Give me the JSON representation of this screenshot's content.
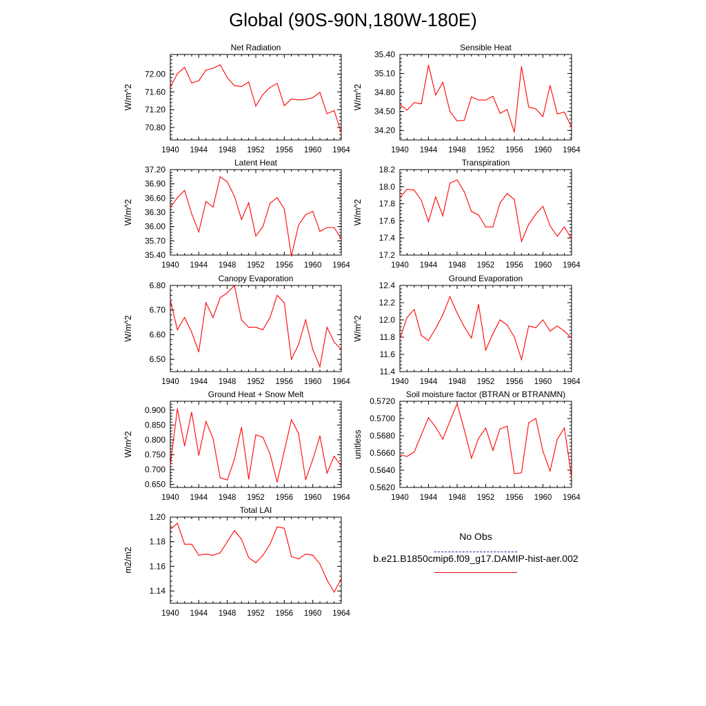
{
  "title": "Global (90S-90N,180W-180E)",
  "legend": {
    "entries": [
      {
        "label": "No Obs",
        "color": "#1a1aa0",
        "style": "dashed"
      },
      {
        "label": "b.e21.B1850cmip6.f09_g17.DAMIP-hist-aer.002",
        "color": "#e00000",
        "style": "solid"
      }
    ]
  },
  "colors": {
    "series": "#ff0000"
  },
  "chart_data": [
    {
      "type": "line",
      "title": "Net Radiation",
      "ylabel": "W/m^2",
      "xlim": [
        1940,
        1964
      ],
      "ylim": [
        70.52,
        72.44
      ],
      "xticks": [
        1940,
        1944,
        1948,
        1952,
        1956,
        1960,
        1964
      ],
      "yticks": [
        70.8,
        71.2,
        71.6,
        72.0
      ],
      "ytick_labels": [
        "70.80",
        "71.20",
        "71.60",
        "72.00"
      ],
      "x": [
        1940,
        1941,
        1942,
        1943,
        1944,
        1945,
        1946,
        1947,
        1948,
        1949,
        1950,
        1951,
        1952,
        1953,
        1954,
        1955,
        1956,
        1957,
        1958,
        1959,
        1960,
        1961,
        1962,
        1963,
        1964
      ],
      "series": [
        {
          "values": [
            71.7,
            72.01,
            72.15,
            71.8,
            71.85,
            72.09,
            72.13,
            72.21,
            71.92,
            71.74,
            71.72,
            71.82,
            71.28,
            71.54,
            71.7,
            71.79,
            71.29,
            71.44,
            71.42,
            71.43,
            71.47,
            71.59,
            71.11,
            71.18,
            70.68
          ]
        }
      ]
    },
    {
      "type": "line",
      "title": "Sensible Heat",
      "ylabel": "W/m^2",
      "xlim": [
        1940,
        1964
      ],
      "ylim": [
        34.05,
        35.4
      ],
      "xticks": [
        1940,
        1944,
        1948,
        1952,
        1956,
        1960,
        1964
      ],
      "yticks": [
        34.2,
        34.5,
        34.8,
        35.1,
        35.4
      ],
      "ytick_labels": [
        "34.20",
        "34.50",
        "34.80",
        "35.10",
        "35.40"
      ],
      "x": [
        1940,
        1941,
        1942,
        1943,
        1944,
        1945,
        1946,
        1947,
        1948,
        1949,
        1950,
        1951,
        1952,
        1953,
        1954,
        1955,
        1956,
        1957,
        1958,
        1959,
        1960,
        1961,
        1962,
        1963,
        1964
      ],
      "series": [
        {
          "values": [
            34.61,
            34.52,
            34.64,
            34.62,
            35.23,
            34.76,
            34.96,
            34.5,
            34.35,
            34.36,
            34.73,
            34.68,
            34.68,
            34.74,
            34.47,
            34.53,
            34.17,
            35.21,
            34.57,
            34.54,
            34.42,
            34.91,
            34.46,
            34.49,
            34.25
          ]
        }
      ]
    },
    {
      "type": "line",
      "title": "Latent Heat",
      "ylabel": "W/m^2",
      "xlim": [
        1940,
        1964
      ],
      "ylim": [
        35.4,
        37.2
      ],
      "xticks": [
        1940,
        1944,
        1948,
        1952,
        1956,
        1960,
        1964
      ],
      "yticks": [
        35.4,
        35.7,
        36.0,
        36.3,
        36.6,
        36.9,
        37.2
      ],
      "ytick_labels": [
        "35.40",
        "35.70",
        "36.00",
        "36.30",
        "36.60",
        "36.90",
        "37.20"
      ],
      "x": [
        1940,
        1941,
        1942,
        1943,
        1944,
        1945,
        1946,
        1947,
        1948,
        1949,
        1950,
        1951,
        1952,
        1953,
        1954,
        1955,
        1956,
        1957,
        1958,
        1959,
        1960,
        1961,
        1962,
        1963,
        1964
      ],
      "series": [
        {
          "values": [
            36.4,
            36.61,
            36.76,
            36.27,
            35.89,
            36.53,
            36.41,
            37.05,
            36.94,
            36.64,
            36.15,
            36.5,
            35.8,
            36.0,
            36.49,
            36.61,
            36.37,
            35.38,
            36.03,
            36.25,
            36.32,
            35.9,
            35.98,
            35.98,
            35.74
          ]
        }
      ]
    },
    {
      "type": "line",
      "title": "Transpiration",
      "ylabel": "W/m^2",
      "xlim": [
        1940,
        1964
      ],
      "ylim": [
        17.2,
        18.2
      ],
      "xticks": [
        1940,
        1944,
        1948,
        1952,
        1956,
        1960,
        1964
      ],
      "yticks": [
        17.2,
        17.4,
        17.6,
        17.8,
        18.0,
        18.2
      ],
      "ytick_labels": [
        "17.2",
        "17.4",
        "17.6",
        "17.8",
        "18.0",
        "18.2"
      ],
      "x": [
        1940,
        1941,
        1942,
        1943,
        1944,
        1945,
        1946,
        1947,
        1948,
        1949,
        1950,
        1951,
        1952,
        1953,
        1954,
        1955,
        1956,
        1957,
        1958,
        1959,
        1960,
        1961,
        1962,
        1963,
        1964
      ],
      "series": [
        {
          "values": [
            17.87,
            17.97,
            17.96,
            17.84,
            17.59,
            17.88,
            17.66,
            18.04,
            18.08,
            17.94,
            17.71,
            17.67,
            17.53,
            17.53,
            17.81,
            17.92,
            17.85,
            17.36,
            17.56,
            17.68,
            17.77,
            17.54,
            17.42,
            17.53,
            17.39
          ]
        }
      ]
    },
    {
      "type": "line",
      "title": "Canopy Evaporation",
      "ylabel": "W/m^2",
      "xlim": [
        1940,
        1964
      ],
      "ylim": [
        6.45,
        6.8
      ],
      "xticks": [
        1940,
        1944,
        1948,
        1952,
        1956,
        1960,
        1964
      ],
      "yticks": [
        6.5,
        6.6,
        6.7,
        6.8
      ],
      "ytick_labels": [
        "6.50",
        "6.60",
        "6.70",
        "6.80"
      ],
      "x": [
        1940,
        1941,
        1942,
        1943,
        1944,
        1945,
        1946,
        1947,
        1948,
        1949,
        1950,
        1951,
        1952,
        1953,
        1954,
        1955,
        1956,
        1957,
        1958,
        1959,
        1960,
        1961,
        1962,
        1963,
        1964
      ],
      "series": [
        {
          "values": [
            6.74,
            6.62,
            6.67,
            6.61,
            6.53,
            6.73,
            6.67,
            6.75,
            6.77,
            6.8,
            6.66,
            6.63,
            6.63,
            6.62,
            6.67,
            6.76,
            6.73,
            6.5,
            6.56,
            6.66,
            6.54,
            6.47,
            6.63,
            6.57,
            6.54
          ]
        }
      ]
    },
    {
      "type": "line",
      "title": "Ground Evaporation",
      "ylabel": "W/m^2",
      "xlim": [
        1940,
        1964
      ],
      "ylim": [
        11.4,
        12.4
      ],
      "xticks": [
        1940,
        1944,
        1948,
        1952,
        1956,
        1960,
        1964
      ],
      "yticks": [
        11.4,
        11.6,
        11.8,
        12.0,
        12.2,
        12.4
      ],
      "ytick_labels": [
        "11.4",
        "11.6",
        "11.8",
        "12.0",
        "12.2",
        "12.4"
      ],
      "x": [
        1940,
        1941,
        1942,
        1943,
        1944,
        1945,
        1946,
        1947,
        1948,
        1949,
        1950,
        1951,
        1952,
        1953,
        1954,
        1955,
        1956,
        1957,
        1958,
        1959,
        1960,
        1961,
        1962,
        1963,
        1964
      ],
      "series": [
        {
          "values": [
            11.78,
            12.03,
            12.12,
            11.82,
            11.76,
            11.9,
            12.06,
            12.27,
            12.08,
            11.92,
            11.79,
            12.18,
            11.65,
            11.84,
            12.0,
            11.94,
            11.8,
            11.54,
            11.93,
            11.91,
            12.0,
            11.87,
            11.93,
            11.87,
            11.79
          ]
        }
      ]
    },
    {
      "type": "line",
      "title": "Ground Heat + Snow Melt",
      "ylabel": "W/m^2",
      "xlim": [
        1940,
        1964
      ],
      "ylim": [
        0.64,
        0.93
      ],
      "xticks": [
        1940,
        1944,
        1948,
        1952,
        1956,
        1960,
        1964
      ],
      "yticks": [
        0.65,
        0.7,
        0.75,
        0.8,
        0.85,
        0.9
      ],
      "ytick_labels": [
        "0.650",
        "0.700",
        "0.750",
        "0.800",
        "0.850",
        "0.900"
      ],
      "x": [
        1940,
        1941,
        1942,
        1943,
        1944,
        1945,
        1946,
        1947,
        1948,
        1949,
        1950,
        1951,
        1952,
        1953,
        1954,
        1955,
        1956,
        1957,
        1958,
        1959,
        1960,
        1961,
        1962,
        1963,
        1964
      ],
      "series": [
        {
          "values": [
            0.715,
            0.905,
            0.78,
            0.893,
            0.748,
            0.862,
            0.805,
            0.673,
            0.665,
            0.735,
            0.842,
            0.668,
            0.817,
            0.809,
            0.752,
            0.658,
            0.762,
            0.868,
            0.822,
            0.666,
            0.734,
            0.813,
            0.688,
            0.745,
            0.712
          ]
        }
      ]
    },
    {
      "type": "line",
      "title": "Soil moisture factor (BTRAN or BTRANMN)",
      "ylabel": "unitless",
      "xlim": [
        1940,
        1964
      ],
      "ylim": [
        0.562,
        0.572
      ],
      "xticks": [
        1940,
        1944,
        1948,
        1952,
        1956,
        1960,
        1964
      ],
      "yticks": [
        0.562,
        0.564,
        0.566,
        0.568,
        0.57,
        0.572
      ],
      "ytick_labels": [
        "0.5620",
        "0.5640",
        "0.5660",
        "0.5680",
        "0.5700",
        "0.5720"
      ],
      "x": [
        1940,
        1941,
        1942,
        1943,
        1944,
        1945,
        1946,
        1947,
        1948,
        1949,
        1950,
        1951,
        1952,
        1953,
        1954,
        1955,
        1956,
        1957,
        1958,
        1959,
        1960,
        1961,
        1962,
        1963,
        1964
      ],
      "series": [
        {
          "values": [
            0.5658,
            0.5656,
            0.5661,
            0.5681,
            0.5701,
            0.569,
            0.5676,
            0.5697,
            0.5717,
            0.5687,
            0.5654,
            0.5677,
            0.5689,
            0.5663,
            0.5688,
            0.5691,
            0.5636,
            0.5637,
            0.5695,
            0.57,
            0.5662,
            0.5639,
            0.5676,
            0.5689,
            0.5632
          ]
        }
      ]
    },
    {
      "type": "line",
      "title": "Total LAI",
      "ylabel": "m2/m2",
      "xlim": [
        1940,
        1964
      ],
      "ylim": [
        1.13,
        1.2
      ],
      "xticks": [
        1940,
        1944,
        1948,
        1952,
        1956,
        1960,
        1964
      ],
      "yticks": [
        1.14,
        1.16,
        1.18,
        1.2
      ],
      "ytick_labels": [
        "1.14",
        "1.16",
        "1.18",
        "1.20"
      ],
      "x": [
        1940,
        1941,
        1942,
        1943,
        1944,
        1945,
        1946,
        1947,
        1948,
        1949,
        1950,
        1951,
        1952,
        1953,
        1954,
        1955,
        1956,
        1957,
        1958,
        1959,
        1960,
        1961,
        1962,
        1963,
        1964
      ],
      "series": [
        {
          "values": [
            1.19,
            1.195,
            1.178,
            1.178,
            1.169,
            1.17,
            1.169,
            1.171,
            1.18,
            1.189,
            1.182,
            1.167,
            1.163,
            1.169,
            1.178,
            1.192,
            1.191,
            1.168,
            1.166,
            1.17,
            1.169,
            1.162,
            1.149,
            1.139,
            1.15
          ]
        }
      ]
    }
  ]
}
